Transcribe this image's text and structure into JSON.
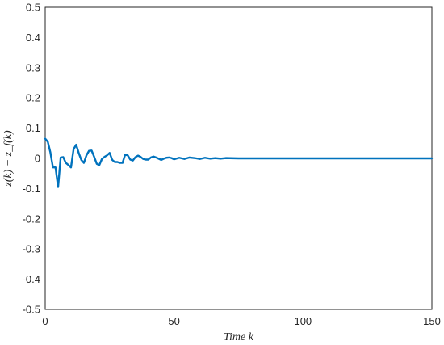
{
  "chart_data": {
    "type": "line",
    "title": "",
    "xlabel": "Time   k",
    "ylabel": "z(k) − z_f(k)",
    "xlim": [
      0,
      150
    ],
    "ylim": [
      -0.5,
      0.5
    ],
    "x_ticks": [
      "0",
      "50",
      "100",
      "150"
    ],
    "y_ticks": [
      "-0.5",
      "-0.4",
      "-0.3",
      "-0.2",
      "-0.1",
      "0",
      "0.1",
      "0.2",
      "0.3",
      "0.4",
      "0.5"
    ],
    "grid": true,
    "series": [
      {
        "color": "#0072bd",
        "x": [
          0,
          1,
          2,
          3,
          4,
          5,
          6,
          7,
          8,
          9,
          10,
          11,
          12,
          13,
          14,
          15,
          16,
          17,
          18,
          19,
          20,
          21,
          22,
          23,
          24,
          25,
          26,
          27,
          28,
          29,
          30,
          31,
          32,
          33,
          34,
          35,
          36,
          37,
          38,
          39,
          40,
          41,
          42,
          43,
          44,
          45,
          46,
          47,
          48,
          49,
          50,
          52,
          54,
          56,
          58,
          60,
          62,
          64,
          66,
          68,
          70,
          75,
          80,
          85,
          90,
          95,
          100,
          110,
          120,
          130,
          140,
          150
        ],
        "y": [
          0.065,
          0.055,
          0.02,
          -0.03,
          -0.03,
          -0.095,
          0.003,
          0.004,
          -0.015,
          -0.022,
          -0.03,
          0.03,
          0.045,
          0.018,
          -0.005,
          -0.015,
          0.01,
          0.025,
          0.026,
          0.005,
          -0.018,
          -0.022,
          -0.002,
          0.005,
          0.01,
          0.018,
          -0.005,
          -0.012,
          -0.012,
          -0.015,
          -0.015,
          0.012,
          0.01,
          -0.004,
          -0.007,
          0.004,
          0.009,
          0.005,
          -0.002,
          -0.004,
          -0.004,
          0.003,
          0.006,
          0.003,
          -0.001,
          -0.005,
          -0.001,
          0.002,
          0.003,
          0.001,
          -0.003,
          0.002,
          -0.002,
          0.003,
          0.001,
          -0.002,
          0.002,
          -0.001,
          0.001,
          -0.001,
          0.001,
          0.0,
          0.0,
          0.0,
          0.0,
          0.0,
          0.0,
          0.0,
          0.0,
          0.0,
          0.0,
          0.0
        ]
      }
    ]
  }
}
